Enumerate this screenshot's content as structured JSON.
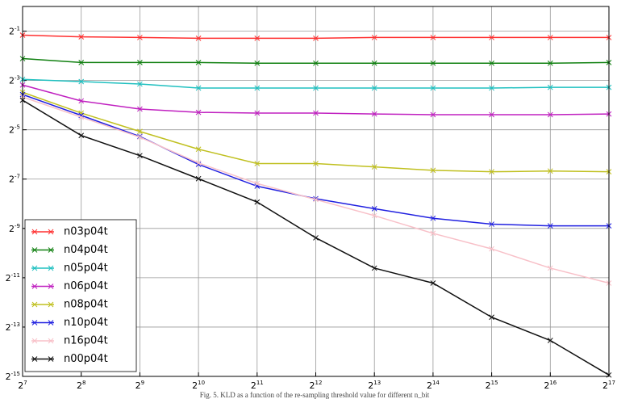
{
  "chart_data": {
    "type": "line",
    "caption": "Fig. 5.  KLD as a function of the re-sampling threshold value for different n_bit",
    "x": [
      128,
      256,
      512,
      1024,
      2048,
      4096,
      8192,
      16384,
      32768,
      65536,
      131072
    ],
    "xlog": true,
    "ylog": true,
    "logbase": 2,
    "grid": true,
    "legend": "lower-left",
    "xlim": [
      128,
      131072
    ],
    "ylim": [
      3.0517578125e-05,
      1
    ],
    "xticks": [
      {
        "value": 128,
        "label": "27"
      },
      {
        "value": 256,
        "label": "28"
      },
      {
        "value": 512,
        "label": "29"
      },
      {
        "value": 1024,
        "label": "210"
      },
      {
        "value": 2048,
        "label": "211"
      },
      {
        "value": 4096,
        "label": "212"
      },
      {
        "value": 8192,
        "label": "213"
      },
      {
        "value": 16384,
        "label": "214"
      },
      {
        "value": 32768,
        "label": "215"
      },
      {
        "value": 65536,
        "label": "216"
      },
      {
        "value": 131072,
        "label": "217"
      }
    ],
    "yticks": [
      {
        "value": 0.5,
        "label": "2-1"
      },
      {
        "value": 0.125,
        "label": "2-3"
      },
      {
        "value": 0.03125,
        "label": "2-5"
      },
      {
        "value": 0.0078125,
        "label": "2-7"
      },
      {
        "value": 0.001953125,
        "label": "2-9"
      },
      {
        "value": 0.00048828125,
        "label": "2-11"
      },
      {
        "value": 0.0001220703125,
        "label": "2-13"
      },
      {
        "value": 3.0517578125e-05,
        "label": "2-15"
      }
    ],
    "series": [
      {
        "name": "n03p04t",
        "color": "#ff3030",
        "values": [
          0.447,
          0.426,
          0.418,
          0.409,
          0.409,
          0.409,
          0.418,
          0.418,
          0.418,
          0.418,
          0.418
        ]
      },
      {
        "name": "n04p04t",
        "color": "#108010",
        "values": [
          0.231,
          0.207,
          0.207,
          0.207,
          0.203,
          0.203,
          0.203,
          0.203,
          0.203,
          0.203,
          0.207
        ]
      },
      {
        "name": "n05p04t",
        "color": "#20c0c0",
        "values": [
          0.129,
          0.121,
          0.113,
          0.101,
          0.101,
          0.101,
          0.101,
          0.101,
          0.101,
          0.103,
          0.103
        ]
      },
      {
        "name": "n06p04t",
        "color": "#c020c0",
        "values": [
          0.11,
          0.0703,
          0.056,
          0.051,
          0.05,
          0.05,
          0.0487,
          0.0477,
          0.0477,
          0.0477,
          0.0487
        ]
      },
      {
        "name": "n08p04t",
        "color": "#c0c020",
        "values": [
          0.0896,
          0.05,
          0.0298,
          0.0181,
          0.0121,
          0.0121,
          0.011,
          0.01,
          0.0096,
          0.0098,
          0.0096
        ]
      },
      {
        "name": "n10p04t",
        "color": "#2020e0",
        "values": [
          0.0842,
          0.0468,
          0.0259,
          0.0118,
          0.0064,
          0.0045,
          0.0034,
          0.0026,
          0.0022,
          0.0021,
          0.0021
        ]
      },
      {
        "name": "n16p04t",
        "color": "#f8c0c8",
        "values": [
          0.0786,
          0.0445,
          0.0254,
          0.0123,
          0.0069,
          0.0044,
          0.0028,
          0.0017,
          0.0011,
          0.00064,
          0.00042
        ]
      },
      {
        "name": "n00p04t",
        "color": "#101010",
        "values": [
          0.0718,
          0.0266,
          0.0151,
          0.0079,
          0.0041,
          0.0015,
          0.00064,
          0.00042,
          0.000161,
          8.38e-05,
          3.17e-05
        ]
      }
    ]
  }
}
